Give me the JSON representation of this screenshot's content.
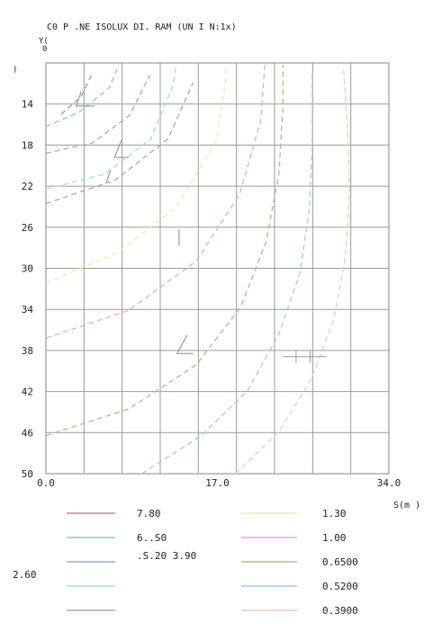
{
  "chart_data": {
    "type": "line",
    "title": "C0 P  .NE ISOLUX DI.  RAM  (UN I N:1x)",
    "ylabel": "Y(",
    "ylabel_zero": "0",
    "ylabel_unit": ")",
    "xlabel": "S(m )",
    "xlim": [
      0,
      34
    ],
    "ylim": [
      10,
      50
    ],
    "y_inverted": true,
    "grid": true,
    "x_ticks": [
      {
        "value": 0,
        "label": "0.0"
      },
      {
        "value": 17,
        "label": "17.0"
      },
      {
        "value": 34,
        "label": "34.0"
      }
    ],
    "y_ticks": [
      {
        "value": 14,
        "label": "14"
      },
      {
        "value": 18,
        "label": "18"
      },
      {
        "value": 22,
        "label": "22"
      },
      {
        "value": 26,
        "label": "26"
      },
      {
        "value": 30,
        "label": "30"
      },
      {
        "value": 34,
        "label": "34"
      },
      {
        "value": 38,
        "label": "38"
      },
      {
        "value": 42,
        "label": "42"
      },
      {
        "value": 46,
        "label": "46"
      },
      {
        "value": 50,
        "label": "50"
      }
    ],
    "legend_position": "bottom",
    "legend": [
      {
        "label": "7.80",
        "color": "#c9869f",
        "column": 0
      },
      {
        "label": "6..S0",
        "color": "#86d4a0",
        "column": 0
      },
      {
        "label": ".S.20 3.90",
        "color": "#9fa6d8",
        "column": 0
      },
      {
        "label": "2.60",
        "color": "#9fe0cf",
        "column": 0
      },
      {
        "label": "",
        "color": "#a8a8a8",
        "column": 0
      },
      {
        "label": "1.30",
        "color": "#e4eeaa",
        "column": 1
      },
      {
        "label": "1.00",
        "color": "#e2a8e6",
        "column": 1
      },
      {
        "label": "0.6500",
        "color": "#b9b690",
        "column": 1
      },
      {
        "label": "0.5200",
        "color": "#a6c9e6",
        "column": 1
      },
      {
        "label": "0.3900",
        "color": "#f2c9ba",
        "column": 1
      }
    ],
    "series": [
      {
        "color": "#c9869f",
        "dash": "6,4",
        "points": [
          [
            1.5,
            15
          ],
          [
            3.5,
            13.3
          ],
          [
            4.5,
            11.2
          ]
        ]
      },
      {
        "color": "#86d4a0",
        "dash": "6,4",
        "points": [
          [
            0,
            16.2
          ],
          [
            3.3,
            14.8
          ],
          [
            6.3,
            12.4
          ],
          [
            7.2,
            10.2
          ]
        ]
      },
      {
        "color": "#9fa6d8",
        "dash": "6,4",
        "points": [
          [
            0,
            18.8
          ],
          [
            4.6,
            17.8
          ],
          [
            8.3,
            15.1
          ],
          [
            10.3,
            11.2
          ]
        ]
      },
      {
        "color": "#9fe0cf",
        "dash": "6,4",
        "points": [
          [
            0,
            22.3
          ],
          [
            5.9,
            20.8
          ],
          [
            10.4,
            17.4
          ],
          [
            12.6,
            12.2
          ],
          [
            12.9,
            10.2
          ]
        ]
      },
      {
        "color": "#a8a8a8",
        "dash": "6,4",
        "points": [
          [
            0,
            23.7
          ],
          [
            6.9,
            21.4
          ],
          [
            12.1,
            17.4
          ],
          [
            14.6,
            11.9
          ]
        ]
      },
      {
        "color": "#e4eeaa",
        "dash": "6,4",
        "points": [
          [
            0,
            31.4
          ],
          [
            6.9,
            28.6
          ],
          [
            12.9,
            24.1
          ],
          [
            16.9,
            17.6
          ],
          [
            17.8,
            11.8
          ],
          [
            17.8,
            10.2
          ]
        ]
      },
      {
        "color": "#e2a8e6",
        "dash": "6,4",
        "points": [
          [
            0,
            36.8
          ],
          [
            8.2,
            34.1
          ],
          [
            14.9,
            29.3
          ],
          [
            19.2,
            22.8
          ],
          [
            21.3,
            15.6
          ],
          [
            21.7,
            10.2
          ]
        ]
      },
      {
        "color": "#b9b690",
        "dash": "6,4",
        "points": [
          [
            0,
            46.3
          ],
          [
            8.2,
            43.7
          ],
          [
            14.9,
            39.4
          ],
          [
            19.3,
            33.8
          ],
          [
            21.8,
            27.5
          ],
          [
            23.1,
            20.8
          ],
          [
            23.5,
            14.2
          ],
          [
            23.5,
            10.2
          ]
        ]
      },
      {
        "color": "#a6c9e6",
        "dash": "6,4",
        "points": [
          [
            9.5,
            50
          ],
          [
            15.4,
            46.3
          ],
          [
            20,
            41.9
          ],
          [
            23.1,
            36.4
          ],
          [
            25.2,
            30.4
          ],
          [
            26.1,
            24.3
          ],
          [
            26.4,
            18.2
          ],
          [
            26.4,
            10.8
          ]
        ]
      },
      {
        "color": "#f2c9ba",
        "dash": "6,4",
        "points": [
          [
            18.8,
            50
          ],
          [
            23.1,
            45.9
          ],
          [
            26.3,
            40.8
          ],
          [
            28.5,
            35.1
          ],
          [
            29.7,
            28.9
          ],
          [
            30.1,
            22.6
          ],
          [
            29.9,
            16.5
          ],
          [
            29.5,
            10.6
          ]
        ]
      }
    ]
  }
}
